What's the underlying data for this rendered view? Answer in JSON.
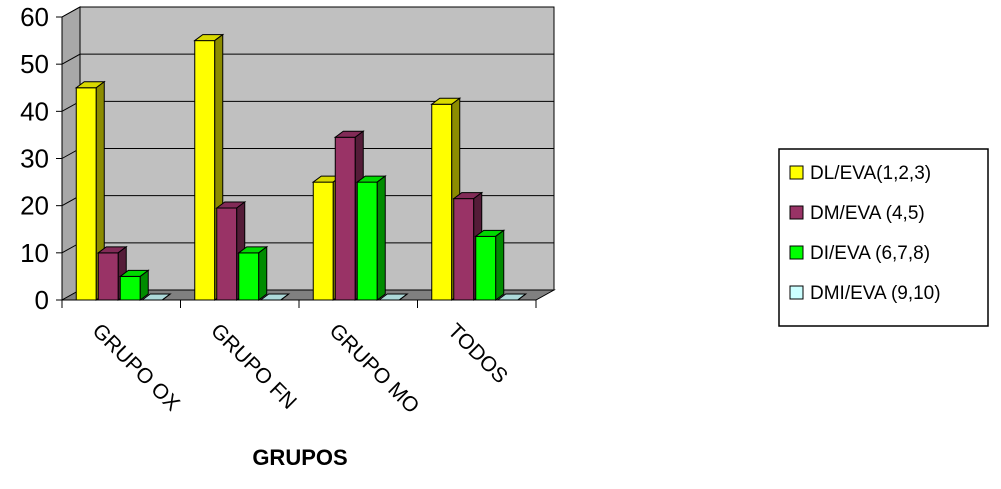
{
  "chart_data": {
    "type": "bar",
    "categories": [
      "GRUPO OX",
      "GRUPO FN",
      "GRUPO MO",
      "TODOS"
    ],
    "series": [
      {
        "name": "DL/EVA(1,2,3)",
        "values": [
          45,
          55,
          25,
          41.5
        ],
        "color": "#ffff00"
      },
      {
        "name": "DM/EVA (4,5)",
        "values": [
          10,
          19.5,
          34.5,
          21.5
        ],
        "color": "#993366"
      },
      {
        "name": "DI/EVA (6,7,8)",
        "values": [
          5,
          10,
          25,
          13.5
        ],
        "color": "#00ff00"
      },
      {
        "name": "DMI/EVA (9,10)",
        "values": [
          0,
          0,
          0,
          0
        ],
        "color": "#ccffff"
      }
    ],
    "yticks": [
      "0",
      "10",
      "20",
      "30",
      "40",
      "50",
      "60"
    ],
    "ylim": [
      0,
      60
    ],
    "xlabel": "GRUPOS",
    "ylabel": "",
    "grid": true,
    "legend": "right",
    "wall_color": "#c0c0c0",
    "floor_color": "#808080"
  }
}
